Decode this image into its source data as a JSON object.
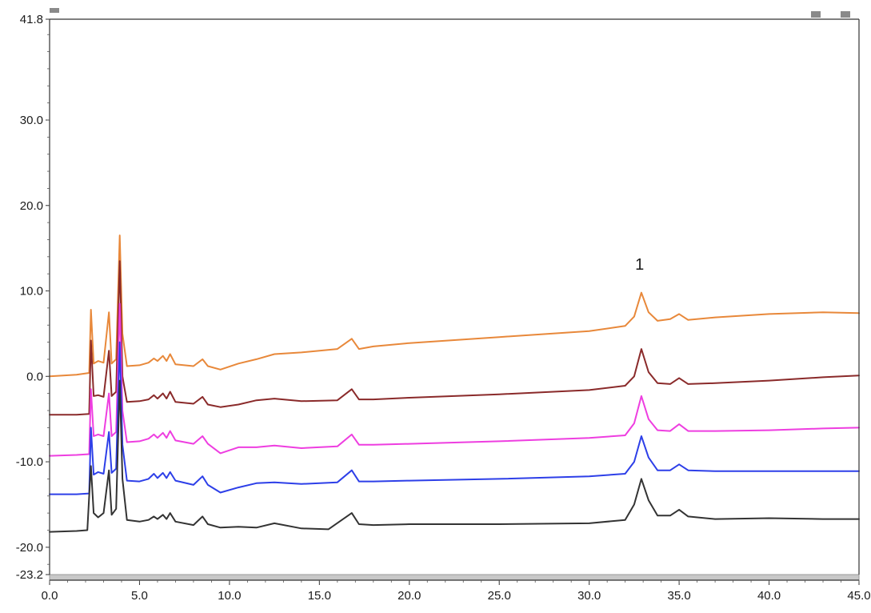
{
  "chart_data": {
    "type": "line",
    "title": "",
    "xlabel": "",
    "ylabel": "",
    "xlim": [
      0.0,
      45.0
    ],
    "ylim": [
      -23.2,
      41.8
    ],
    "x_ticks": [
      "0.0",
      "5.0",
      "10.0",
      "15.0",
      "20.0",
      "25.0",
      "30.0",
      "35.0",
      "40.0",
      "45.0"
    ],
    "x_tick_values": [
      0,
      5,
      10,
      15,
      20,
      25,
      30,
      35,
      40,
      45
    ],
    "y_ticks": [
      "41.8",
      "30.0",
      "20.0",
      "10.0",
      "0.0",
      "-10.0",
      "-20.0",
      "-23.2"
    ],
    "y_tick_values": [
      41.8,
      30.0,
      20.0,
      10.0,
      0.0,
      -10.0,
      -20.0,
      -23.2
    ],
    "grid": false,
    "annotations": [
      {
        "text": "1",
        "x": 32.8,
        "y": 12.5
      }
    ],
    "series": [
      {
        "color": "#e8883a",
        "points": [
          [
            0,
            0
          ],
          [
            1.5,
            0.2
          ],
          [
            2.2,
            0.4
          ],
          [
            2.3,
            7.8
          ],
          [
            2.45,
            1.5
          ],
          [
            2.7,
            1.8
          ],
          [
            3.0,
            1.6
          ],
          [
            3.3,
            7.5
          ],
          [
            3.45,
            1.5
          ],
          [
            3.7,
            2.0
          ],
          [
            3.9,
            16.5
          ],
          [
            4.05,
            5
          ],
          [
            4.3,
            1.2
          ],
          [
            5.0,
            1.3
          ],
          [
            5.5,
            1.6
          ],
          [
            5.8,
            2.1
          ],
          [
            6.0,
            1.8
          ],
          [
            6.3,
            2.4
          ],
          [
            6.5,
            1.8
          ],
          [
            6.7,
            2.6
          ],
          [
            7.0,
            1.4
          ],
          [
            8.0,
            1.2
          ],
          [
            8.5,
            2.0
          ],
          [
            8.8,
            1.2
          ],
          [
            9.5,
            0.8
          ],
          [
            10.5,
            1.5
          ],
          [
            11.5,
            2.0
          ],
          [
            12.5,
            2.6
          ],
          [
            14.0,
            2.8
          ],
          [
            16.0,
            3.2
          ],
          [
            16.8,
            4.4
          ],
          [
            17.2,
            3.2
          ],
          [
            18.0,
            3.5
          ],
          [
            20.0,
            3.9
          ],
          [
            25.0,
            4.6
          ],
          [
            30.0,
            5.3
          ],
          [
            32.0,
            5.9
          ],
          [
            32.5,
            7.0
          ],
          [
            32.9,
            9.8
          ],
          [
            33.3,
            7.5
          ],
          [
            33.8,
            6.5
          ],
          [
            34.5,
            6.7
          ],
          [
            35.0,
            7.3
          ],
          [
            35.5,
            6.6
          ],
          [
            37.0,
            6.9
          ],
          [
            40.0,
            7.3
          ],
          [
            43.0,
            7.5
          ],
          [
            45.0,
            7.4
          ]
        ]
      },
      {
        "color": "#8a2a2a",
        "points": [
          [
            0,
            -4.5
          ],
          [
            1.5,
            -4.5
          ],
          [
            2.2,
            -4.4
          ],
          [
            2.3,
            4.2
          ],
          [
            2.45,
            -2.3
          ],
          [
            2.7,
            -2.2
          ],
          [
            3.0,
            -2.4
          ],
          [
            3.3,
            3.0
          ],
          [
            3.45,
            -2.3
          ],
          [
            3.7,
            -1.8
          ],
          [
            3.9,
            13.5
          ],
          [
            4.05,
            0
          ],
          [
            4.3,
            -3.0
          ],
          [
            5.0,
            -2.9
          ],
          [
            5.5,
            -2.7
          ],
          [
            5.8,
            -2.2
          ],
          [
            6.0,
            -2.6
          ],
          [
            6.3,
            -2.0
          ],
          [
            6.5,
            -2.6
          ],
          [
            6.7,
            -1.8
          ],
          [
            7.0,
            -3.0
          ],
          [
            8.0,
            -3.2
          ],
          [
            8.5,
            -2.4
          ],
          [
            8.8,
            -3.3
          ],
          [
            9.5,
            -3.6
          ],
          [
            10.5,
            -3.3
          ],
          [
            11.5,
            -2.8
          ],
          [
            12.5,
            -2.6
          ],
          [
            14.0,
            -2.9
          ],
          [
            16.0,
            -2.8
          ],
          [
            16.8,
            -1.5
          ],
          [
            17.2,
            -2.7
          ],
          [
            18.0,
            -2.7
          ],
          [
            20.0,
            -2.5
          ],
          [
            25.0,
            -2.1
          ],
          [
            30.0,
            -1.6
          ],
          [
            32.0,
            -1.1
          ],
          [
            32.5,
            0.0
          ],
          [
            32.9,
            3.2
          ],
          [
            33.3,
            0.5
          ],
          [
            33.8,
            -0.8
          ],
          [
            34.5,
            -0.9
          ],
          [
            35.0,
            -0.2
          ],
          [
            35.5,
            -0.9
          ],
          [
            37.0,
            -0.8
          ],
          [
            40.0,
            -0.5
          ],
          [
            43.0,
            -0.1
          ],
          [
            45.0,
            0.1
          ]
        ]
      },
      {
        "color": "#ee3ee0",
        "points": [
          [
            0,
            -9.3
          ],
          [
            1.5,
            -9.2
          ],
          [
            2.2,
            -9.1
          ],
          [
            2.3,
            -1.5
          ],
          [
            2.45,
            -7.0
          ],
          [
            2.7,
            -6.8
          ],
          [
            3.0,
            -7.0
          ],
          [
            3.3,
            -2.0
          ],
          [
            3.45,
            -7.0
          ],
          [
            3.7,
            -6.5
          ],
          [
            3.9,
            8.5
          ],
          [
            4.05,
            -4
          ],
          [
            4.3,
            -7.7
          ],
          [
            5.0,
            -7.6
          ],
          [
            5.5,
            -7.3
          ],
          [
            5.8,
            -6.8
          ],
          [
            6.0,
            -7.2
          ],
          [
            6.3,
            -6.6
          ],
          [
            6.5,
            -7.2
          ],
          [
            6.7,
            -6.4
          ],
          [
            7.0,
            -7.5
          ],
          [
            8.0,
            -7.9
          ],
          [
            8.5,
            -7.0
          ],
          [
            8.8,
            -7.9
          ],
          [
            9.5,
            -9.0
          ],
          [
            10.5,
            -8.3
          ],
          [
            11.5,
            -8.3
          ],
          [
            12.5,
            -8.1
          ],
          [
            14.0,
            -8.4
          ],
          [
            16.0,
            -8.2
          ],
          [
            16.8,
            -6.8
          ],
          [
            17.2,
            -8.0
          ],
          [
            18.0,
            -8.0
          ],
          [
            20.0,
            -7.9
          ],
          [
            25.0,
            -7.6
          ],
          [
            30.0,
            -7.2
          ],
          [
            32.0,
            -6.9
          ],
          [
            32.5,
            -5.5
          ],
          [
            32.9,
            -2.3
          ],
          [
            33.3,
            -5.0
          ],
          [
            33.8,
            -6.3
          ],
          [
            34.5,
            -6.4
          ],
          [
            35.0,
            -5.6
          ],
          [
            35.5,
            -6.4
          ],
          [
            37.0,
            -6.4
          ],
          [
            40.0,
            -6.3
          ],
          [
            43.0,
            -6.1
          ],
          [
            45.0,
            -6.0
          ]
        ]
      },
      {
        "color": "#2d3fe8",
        "points": [
          [
            0,
            -13.8
          ],
          [
            1.5,
            -13.8
          ],
          [
            2.2,
            -13.7
          ],
          [
            2.3,
            -6.0
          ],
          [
            2.45,
            -11.5
          ],
          [
            2.7,
            -11.2
          ],
          [
            3.0,
            -11.4
          ],
          [
            3.3,
            -6.5
          ],
          [
            3.45,
            -11.3
          ],
          [
            3.7,
            -10.8
          ],
          [
            3.9,
            4.0
          ],
          [
            4.05,
            -8
          ],
          [
            4.3,
            -12.2
          ],
          [
            5.0,
            -12.3
          ],
          [
            5.5,
            -12.0
          ],
          [
            5.8,
            -11.4
          ],
          [
            6.0,
            -11.9
          ],
          [
            6.3,
            -11.3
          ],
          [
            6.5,
            -11.9
          ],
          [
            6.7,
            -11.2
          ],
          [
            7.0,
            -12.2
          ],
          [
            8.0,
            -12.7
          ],
          [
            8.5,
            -11.7
          ],
          [
            8.8,
            -12.7
          ],
          [
            9.5,
            -13.6
          ],
          [
            10.5,
            -13.0
          ],
          [
            11.5,
            -12.5
          ],
          [
            12.5,
            -12.4
          ],
          [
            14.0,
            -12.6
          ],
          [
            16.0,
            -12.4
          ],
          [
            16.8,
            -11.0
          ],
          [
            17.2,
            -12.3
          ],
          [
            18.0,
            -12.3
          ],
          [
            20.0,
            -12.2
          ],
          [
            25.0,
            -12.0
          ],
          [
            30.0,
            -11.7
          ],
          [
            32.0,
            -11.4
          ],
          [
            32.5,
            -10.0
          ],
          [
            32.9,
            -7.0
          ],
          [
            33.3,
            -9.5
          ],
          [
            33.8,
            -11.0
          ],
          [
            34.5,
            -11.0
          ],
          [
            35.0,
            -10.3
          ],
          [
            35.5,
            -11.0
          ],
          [
            37.0,
            -11.1
          ],
          [
            40.0,
            -11.1
          ],
          [
            43.0,
            -11.1
          ],
          [
            45.0,
            -11.1
          ]
        ]
      },
      {
        "color": "#333333",
        "points": [
          [
            0,
            -18.2
          ],
          [
            1.5,
            -18.1
          ],
          [
            2.1,
            -18.0
          ],
          [
            2.2,
            -14.0
          ],
          [
            2.3,
            -10.5
          ],
          [
            2.45,
            -16.0
          ],
          [
            2.7,
            -16.5
          ],
          [
            3.0,
            -16.0
          ],
          [
            3.3,
            -11.0
          ],
          [
            3.45,
            -16.2
          ],
          [
            3.7,
            -15.5
          ],
          [
            3.9,
            -0.5
          ],
          [
            4.05,
            -12
          ],
          [
            4.3,
            -16.8
          ],
          [
            5.0,
            -17.0
          ],
          [
            5.5,
            -16.8
          ],
          [
            5.8,
            -16.4
          ],
          [
            6.0,
            -16.7
          ],
          [
            6.3,
            -16.2
          ],
          [
            6.5,
            -16.7
          ],
          [
            6.7,
            -16.0
          ],
          [
            7.0,
            -17.0
          ],
          [
            8.0,
            -17.4
          ],
          [
            8.5,
            -16.4
          ],
          [
            8.8,
            -17.3
          ],
          [
            9.5,
            -17.7
          ],
          [
            10.5,
            -17.6
          ],
          [
            11.5,
            -17.7
          ],
          [
            12.5,
            -17.2
          ],
          [
            14.0,
            -17.8
          ],
          [
            15.5,
            -17.9
          ],
          [
            16.8,
            -16.0
          ],
          [
            17.2,
            -17.3
          ],
          [
            18.0,
            -17.4
          ],
          [
            20.0,
            -17.3
          ],
          [
            25.0,
            -17.3
          ],
          [
            30.0,
            -17.2
          ],
          [
            32.0,
            -16.8
          ],
          [
            32.5,
            -15.0
          ],
          [
            32.9,
            -12.0
          ],
          [
            33.3,
            -14.5
          ],
          [
            33.8,
            -16.3
          ],
          [
            34.5,
            -16.3
          ],
          [
            35.0,
            -15.6
          ],
          [
            35.5,
            -16.4
          ],
          [
            37.0,
            -16.7
          ],
          [
            40.0,
            -16.6
          ],
          [
            43.0,
            -16.7
          ],
          [
            45.0,
            -16.7
          ]
        ]
      }
    ]
  }
}
